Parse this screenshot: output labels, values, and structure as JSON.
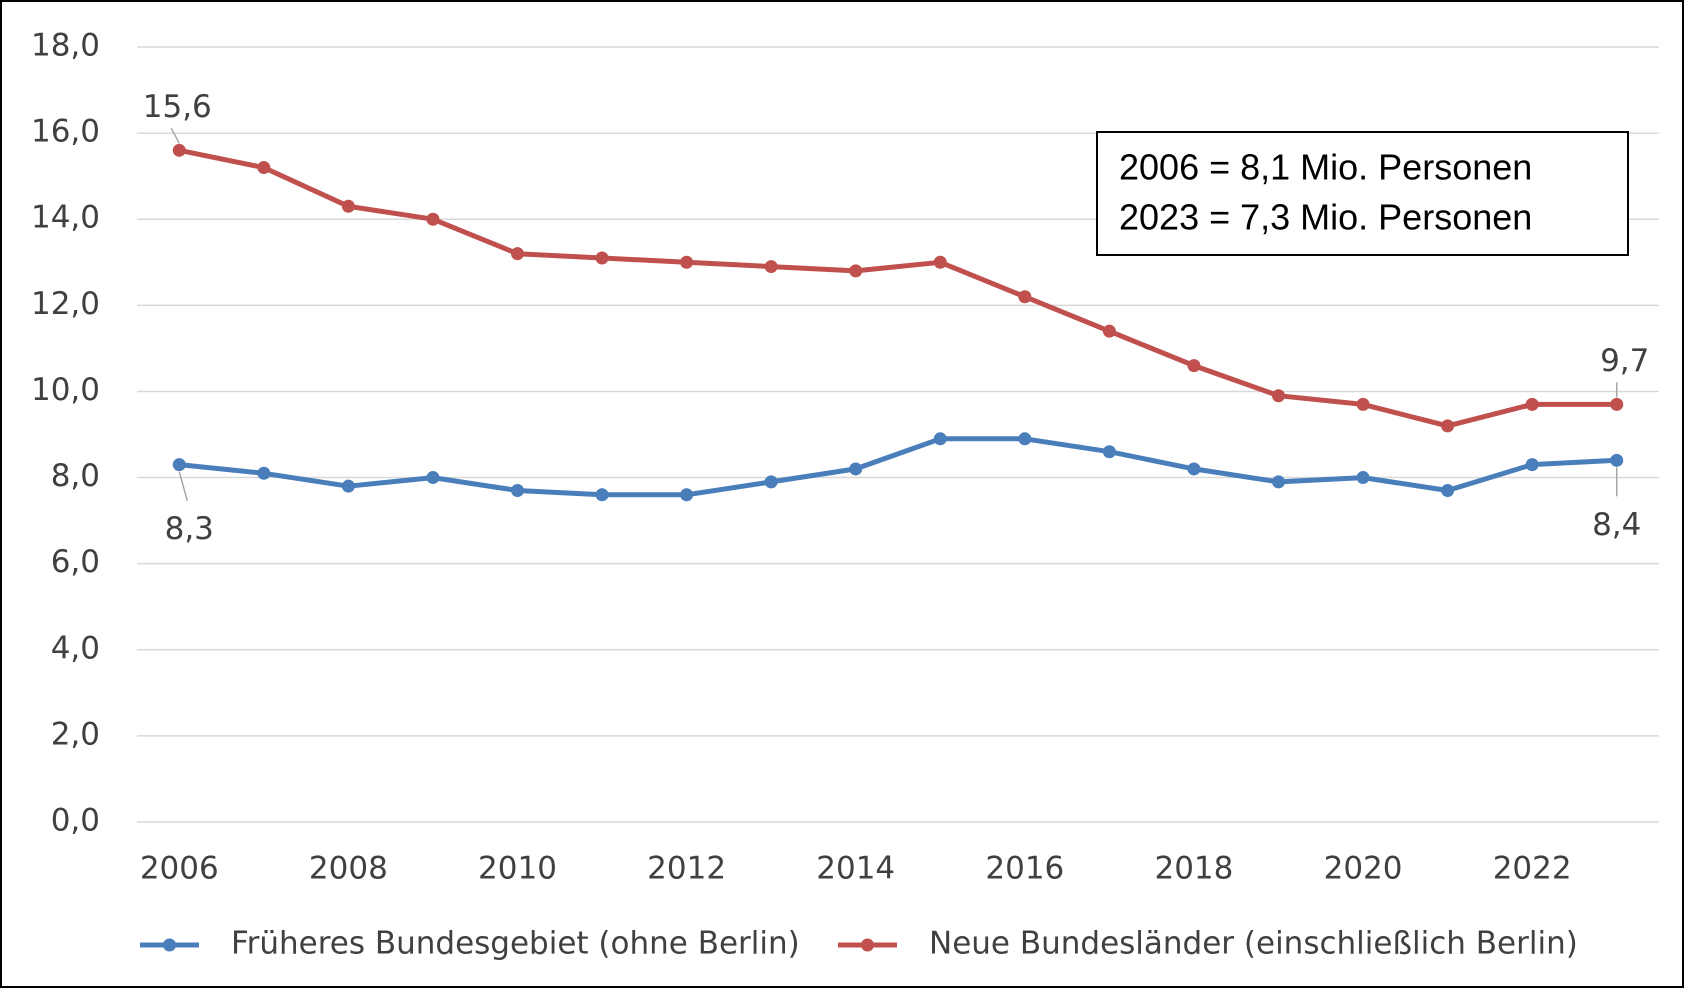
{
  "chart_data": {
    "type": "line",
    "x": [
      2006,
      2007,
      2008,
      2009,
      2010,
      2011,
      2012,
      2013,
      2014,
      2015,
      2016,
      2017,
      2018,
      2019,
      2020,
      2021,
      2022,
      2023
    ],
    "xlim": [
      2005.5,
      2023.5
    ],
    "xticks": [
      2006,
      2008,
      2010,
      2012,
      2014,
      2016,
      2018,
      2020,
      2022
    ],
    "ylim": [
      0,
      18
    ],
    "yticks": [
      {
        "value": 0,
        "label": "0,0"
      },
      {
        "value": 2,
        "label": "2,0"
      },
      {
        "value": 4,
        "label": "4,0"
      },
      {
        "value": 6,
        "label": "6,0"
      },
      {
        "value": 8,
        "label": "8,0"
      },
      {
        "value": 10,
        "label": "10,0"
      },
      {
        "value": 12,
        "label": "12,0"
      },
      {
        "value": 14,
        "label": "14,0"
      },
      {
        "value": 16,
        "label": "16,0"
      },
      {
        "value": 18,
        "label": "18,0"
      }
    ],
    "grid": true,
    "legend": "bottom",
    "series": [
      {
        "name": "Früheres Bundesgebiet (ohne Berlin)",
        "color": "#4a7ebb",
        "values": [
          8.3,
          8.1,
          7.8,
          8.0,
          7.7,
          7.6,
          7.6,
          7.9,
          8.2,
          8.9,
          8.9,
          8.6,
          8.2,
          7.9,
          8.0,
          7.7,
          8.3,
          8.4
        ],
        "value_labels": [
          "8,3",
          null,
          null,
          null,
          null,
          null,
          null,
          null,
          null,
          null,
          null,
          null,
          null,
          null,
          null,
          null,
          null,
          "8,4"
        ]
      },
      {
        "name": "Neue Bundesländer (einschließlich Berlin)",
        "color": "#c0504d",
        "values": [
          15.6,
          15.2,
          14.3,
          14.0,
          13.2,
          13.1,
          13.0,
          12.9,
          12.8,
          13.0,
          12.2,
          11.4,
          10.6,
          9.9,
          9.7,
          9.2,
          9.7,
          9.7
        ],
        "value_labels": [
          "15,6",
          null,
          null,
          null,
          null,
          null,
          null,
          null,
          null,
          null,
          null,
          null,
          null,
          null,
          null,
          null,
          null,
          "9,7"
        ]
      }
    ],
    "annotations": [
      "2006 = 8,1 Mio. Personen",
      "2023 = 7,3 Mio. Personen"
    ]
  }
}
